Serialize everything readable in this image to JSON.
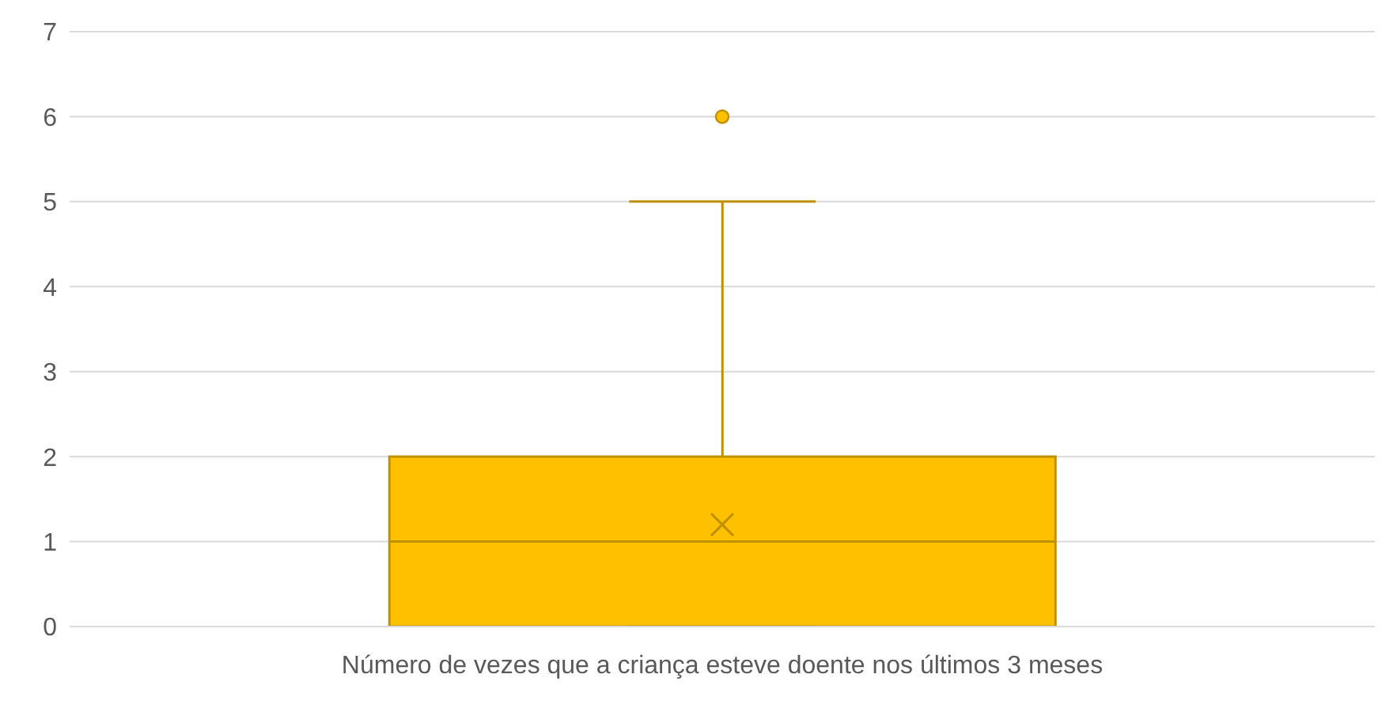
{
  "chart_data": {
    "type": "box",
    "categories": [
      "Número de vezes que a criança esteve doente nos últimos 3 meses"
    ],
    "boxes": [
      {
        "low": 0,
        "q1": 0,
        "median": 1,
        "q3": 2,
        "high": 5,
        "mean": 1.2,
        "outliers": [
          6
        ]
      }
    ],
    "color": "#ffc000",
    "ylim": [
      0,
      7
    ],
    "yticks": [
      0,
      1,
      2,
      3,
      4,
      5,
      6,
      7
    ],
    "grid": "y"
  }
}
